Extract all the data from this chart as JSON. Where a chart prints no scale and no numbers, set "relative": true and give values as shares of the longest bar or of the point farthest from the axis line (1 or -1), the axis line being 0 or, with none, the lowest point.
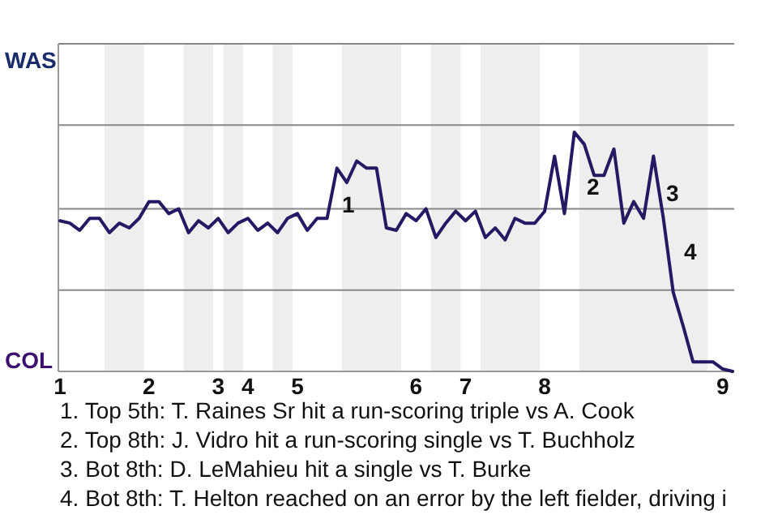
{
  "chart_data": {
    "type": "line",
    "relative": true,
    "categories": [
      "1",
      null,
      null,
      null,
      null,
      null,
      null,
      null,
      null,
      "2",
      null,
      null,
      null,
      null,
      null,
      null,
      "3",
      null,
      null,
      "4",
      null,
      null,
      null,
      null,
      "5",
      null,
      null,
      null,
      null,
      null,
      null,
      null,
      null,
      null,
      null,
      null,
      "6",
      null,
      null,
      null,
      null,
      "7",
      null,
      null,
      null,
      null,
      null,
      null,
      null,
      "8",
      null,
      null,
      null,
      null,
      null,
      null,
      null,
      null,
      null,
      null,
      null,
      null,
      null,
      null,
      null,
      null,
      null,
      "9",
      null
    ],
    "series": [
      {
        "color": "#241a63",
        "values": [
          0.63,
          0.62,
          0.59,
          0.64,
          0.64,
          0.58,
          0.62,
          0.6,
          0.64,
          0.71,
          0.71,
          0.66,
          0.68,
          0.58,
          0.63,
          0.6,
          0.64,
          0.58,
          0.62,
          0.64,
          0.59,
          0.62,
          0.58,
          0.64,
          0.66,
          0.59,
          0.64,
          0.64,
          0.85,
          0.79,
          0.88,
          0.85,
          0.85,
          0.6,
          0.59,
          0.66,
          0.63,
          0.68,
          0.56,
          0.62,
          0.67,
          0.63,
          0.67,
          0.56,
          0.6,
          0.55,
          0.64,
          0.62,
          0.62,
          0.67,
          0.9,
          0.66,
          1,
          0.95,
          0.82,
          0.82,
          0.93,
          0.62,
          0.71,
          0.64,
          0.9,
          0.64,
          0.33,
          0.19,
          0.04,
          0.04,
          0.04,
          0.01,
          0
        ]
      }
    ],
    "ref_lines": [
      {
        "axis": "y",
        "value": 0.34,
        "color": "#888888"
      },
      {
        "axis": "y",
        "value": 0.68,
        "color": "#888888"
      },
      {
        "axis": "y",
        "value": 1.03,
        "color": "#888888"
      },
      {
        "axis": "y",
        "value": 1.37,
        "color": "#888888"
      }
    ],
    "marker": "none",
    "line_style": "solid",
    "annotations": [
      "WAS",
      "COL",
      "1",
      "2",
      "3",
      "4",
      "1. Top 5th: T. Raines Sr hit a run-scoring triple vs A. Cook",
      "2. Top 8th: J. Vidro hit a run-scoring single vs T. Buchholz",
      "3. Bot 8th: D. LeMahieu hit a single vs T. Burke",
      "4. Bot 8th: T. Helton reached on an error by the left fielder, driving i"
    ]
  }
}
